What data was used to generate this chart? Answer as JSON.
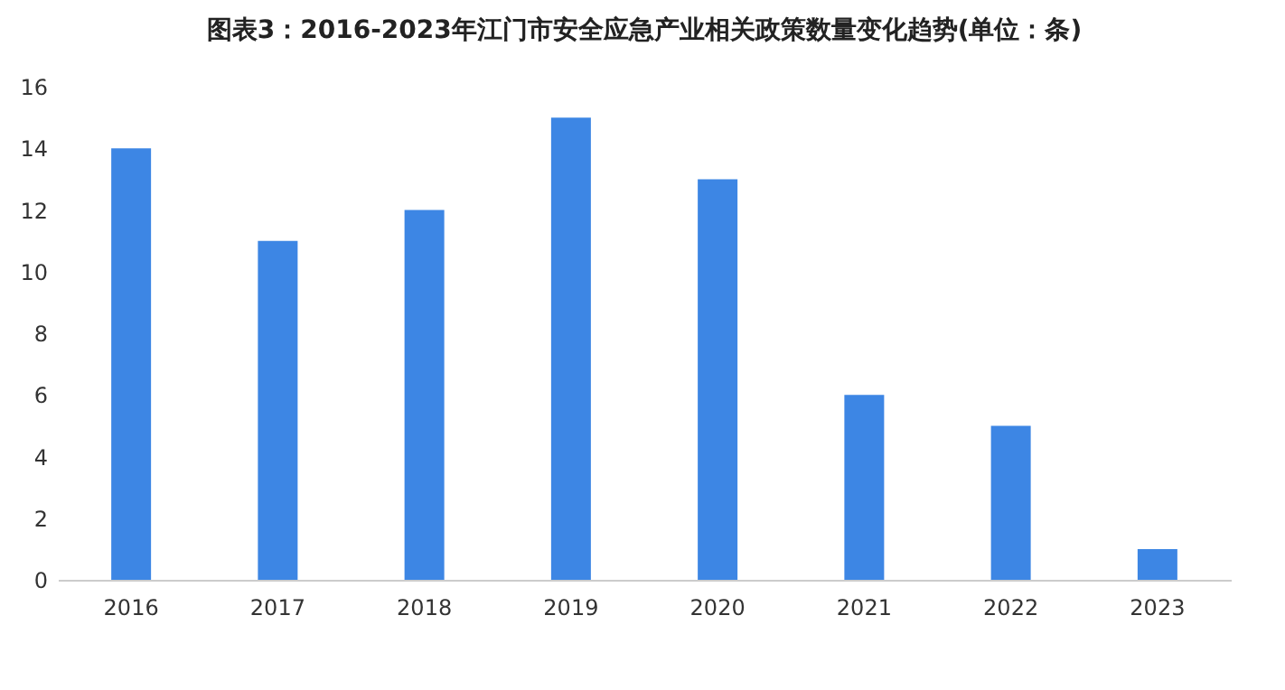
{
  "chart_data": {
    "type": "bar",
    "title": "图表3：2016-2023年江门市安全应急产业相关政策数量变化趋势(单位：条)",
    "categories": [
      "2016",
      "2017",
      "2018",
      "2019",
      "2020",
      "2021",
      "2022",
      "2023"
    ],
    "values": [
      14,
      11,
      12,
      15,
      13,
      6,
      5,
      1
    ],
    "color": "#3d86e4",
    "ylim": [
      0,
      16
    ],
    "yticks": [
      0,
      2,
      4,
      6,
      8,
      10,
      12,
      14,
      16
    ],
    "grid": false
  }
}
